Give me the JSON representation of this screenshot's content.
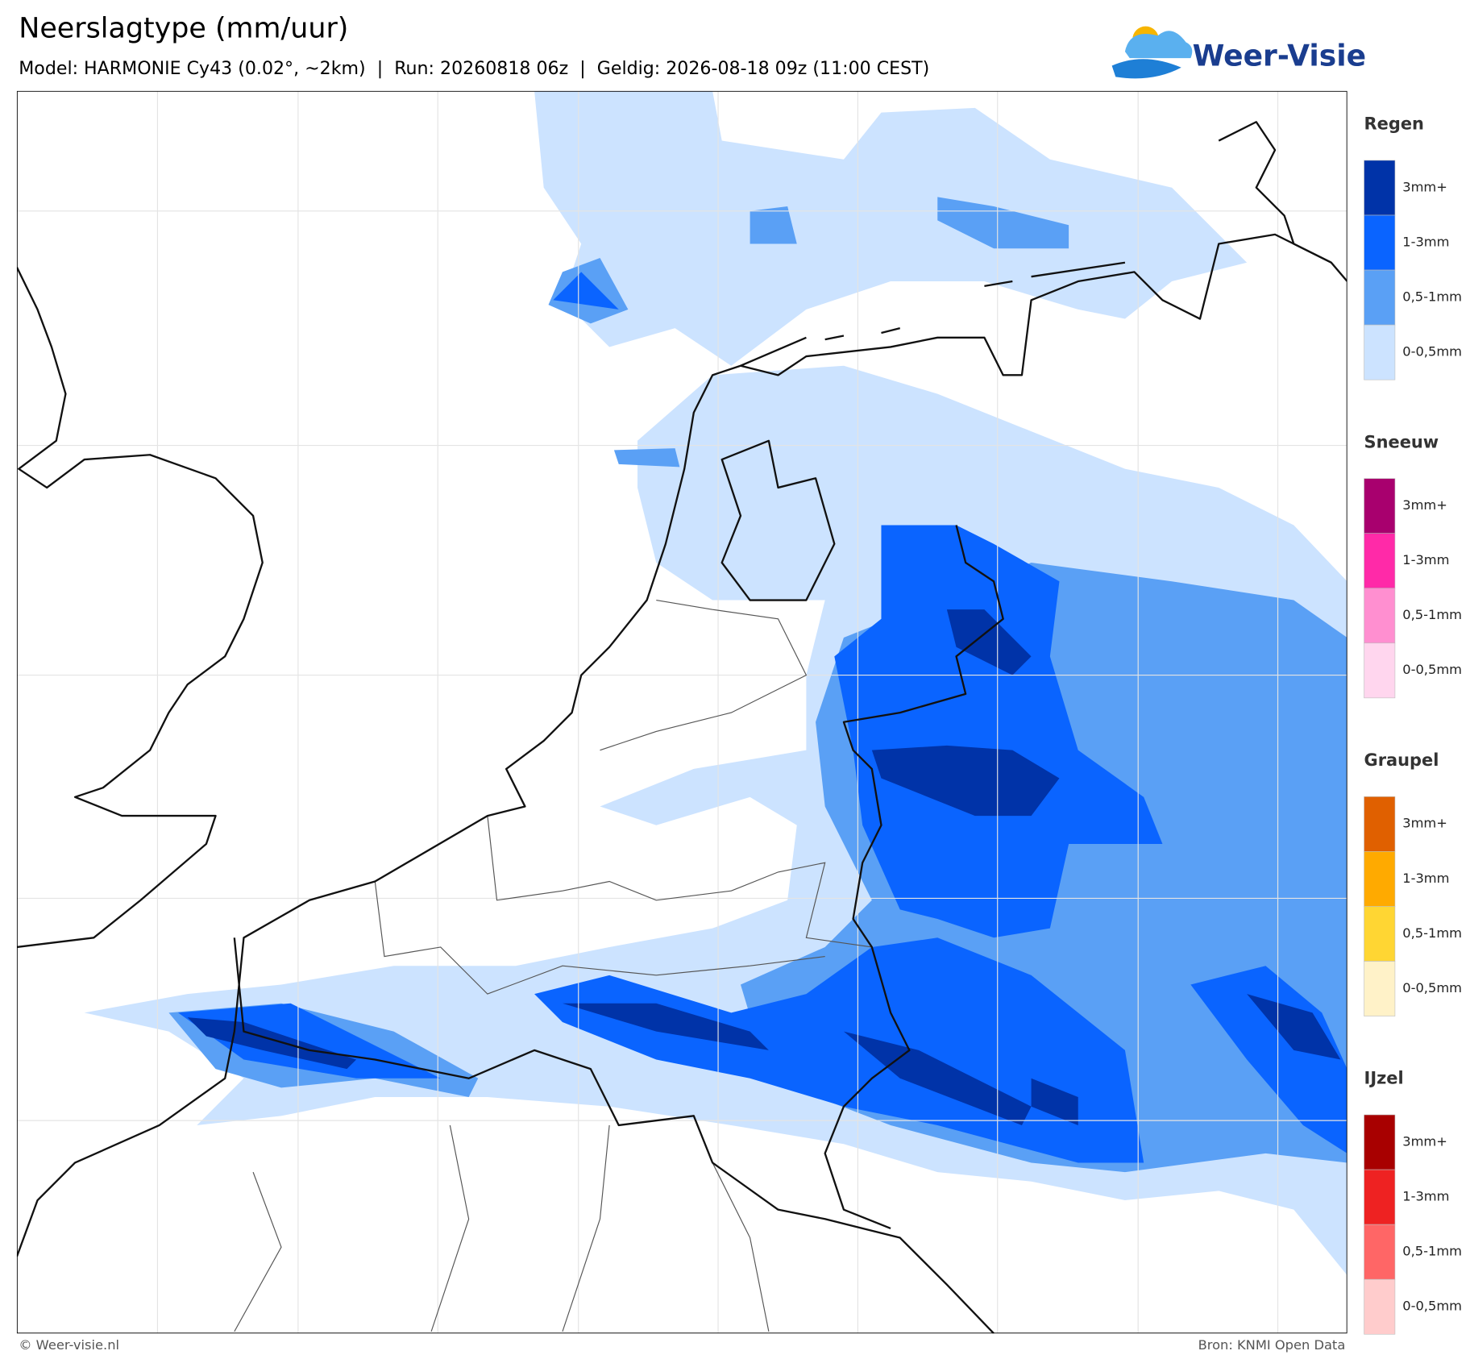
{
  "header": {
    "title": "Neerslagtype (mm/uur)",
    "subtitle": "Model: HARMONIE Cy43 (0.02°, ~2km)  |  Run: 20260818 06z  |  Geldig: 2026-08-18 09z (11:00 CEST)",
    "logo": "Weer-Visie"
  },
  "legend": [
    {
      "title": "Regen",
      "items": [
        {
          "label": "3mm+",
          "color": "#0033a8"
        },
        {
          "label": "1-3mm",
          "color": "#0a64ff"
        },
        {
          "label": "0,5-1mm",
          "color": "#5aa0f5"
        },
        {
          "label": "0-0,5mm",
          "color": "#cce3ff"
        }
      ]
    },
    {
      "title": "Sneeuw",
      "items": [
        {
          "label": "3mm+",
          "color": "#a8006e"
        },
        {
          "label": "1-3mm",
          "color": "#ff2aa8"
        },
        {
          "label": "0,5-1mm",
          "color": "#ff8fd0"
        },
        {
          "label": "0-0,5mm",
          "color": "#ffd6ee"
        }
      ]
    },
    {
      "title": "Graupel",
      "items": [
        {
          "label": "3mm+",
          "color": "#e06000"
        },
        {
          "label": "1-3mm",
          "color": "#ffaa00"
        },
        {
          "label": "0,5-1mm",
          "color": "#ffd633"
        },
        {
          "label": "0-0,5mm",
          "color": "#fff2c8"
        }
      ]
    },
    {
      "title": "IJzel",
      "items": [
        {
          "label": "3mm+",
          "color": "#a80000"
        },
        {
          "label": "1-3mm",
          "color": "#ee2222"
        },
        {
          "label": "0,5-1mm",
          "color": "#ff6666"
        },
        {
          "label": "0-0,5mm",
          "color": "#ffcccc"
        }
      ]
    }
  ],
  "footer": {
    "left": "© Weer-visie.nl",
    "right": "Bron: KNMI Open Data"
  }
}
